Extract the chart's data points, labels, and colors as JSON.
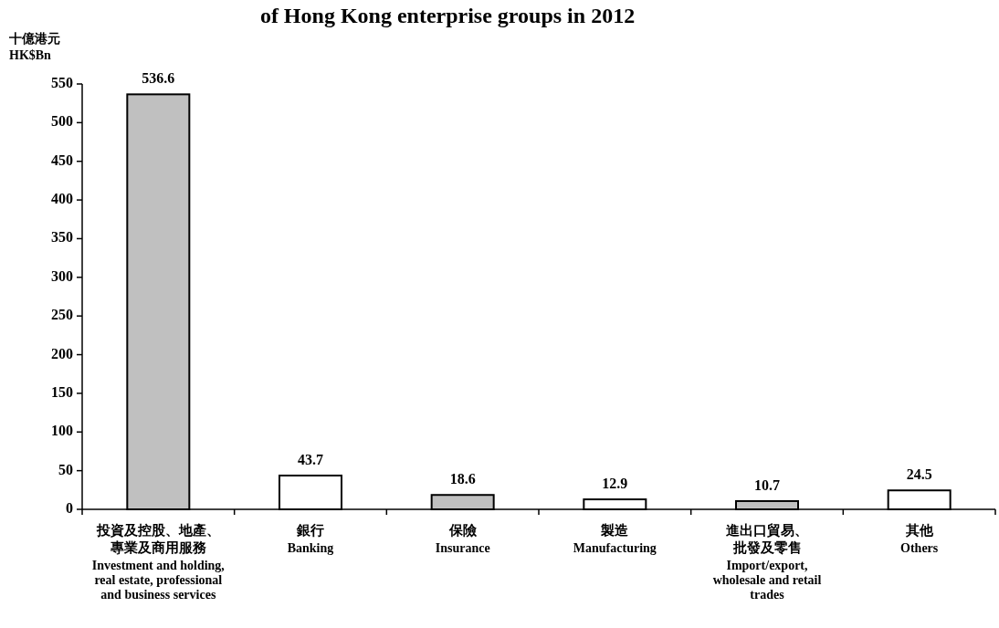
{
  "chart_data": {
    "type": "bar",
    "title": "of Hong Kong enterprise groups in 2012",
    "ylabel": "十億港元 HK$Bn",
    "categories": [
      "投資及控股、地產、專業及商用服務 Investment and holding, real estate, professional and business services",
      "銀行 Banking",
      "保險 Insurance",
      "製造 Manufacturing",
      "進出口貿易、批發及零售 Import/export, wholesale and retail trades",
      "其他 Others"
    ],
    "values": [
      536.6,
      43.7,
      18.6,
      12.9,
      10.7,
      24.5
    ],
    "colors": [
      "#c0c0c0",
      "#ffffff",
      "#c0c0c0",
      "#ffffff",
      "#c0c0c0",
      "#ffffff"
    ],
    "ylim": [
      0,
      550
    ],
    "yticks": [
      0,
      50,
      100,
      150,
      200,
      250,
      300,
      350,
      400,
      450,
      500,
      550
    ],
    "data_labels": true,
    "grid": false
  }
}
